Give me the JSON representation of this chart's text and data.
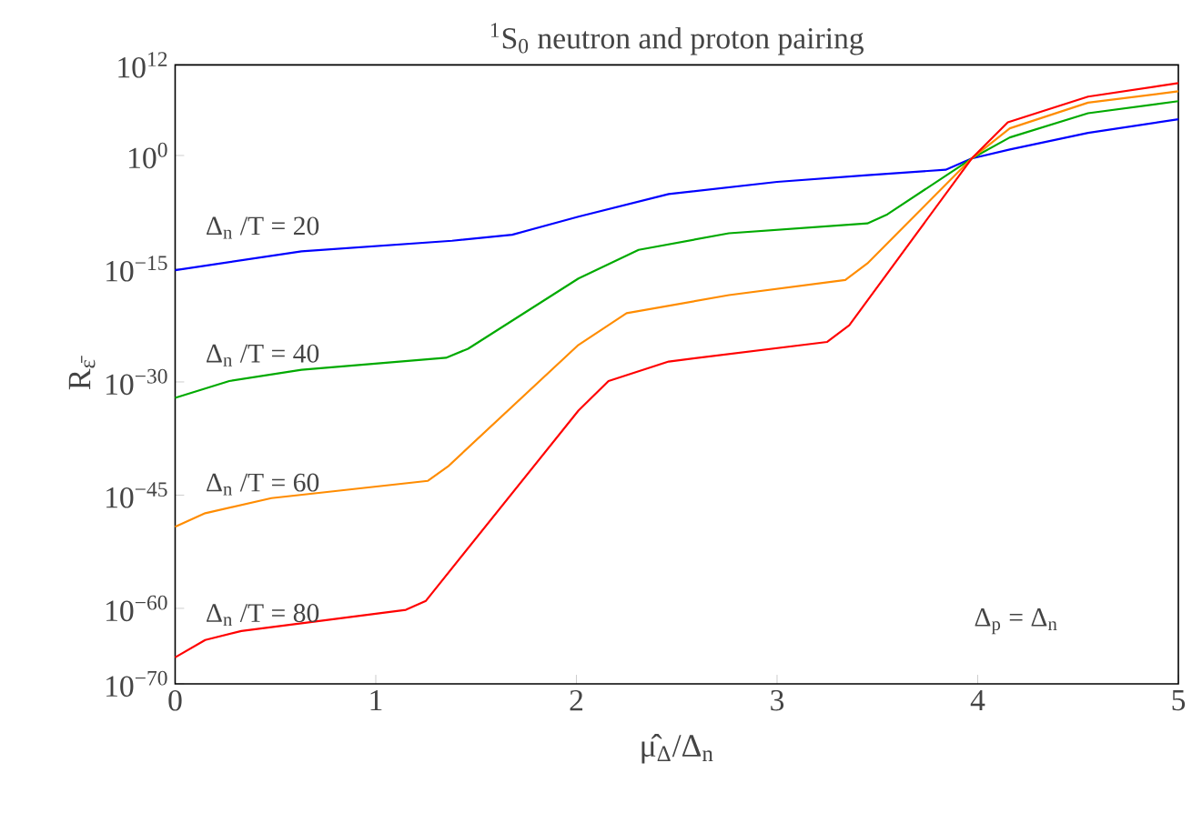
{
  "chart_data": {
    "type": "line",
    "title": "$^{1}$S$_{0}$ neutron and proton pairing",
    "xlabel": "μ̂$_{Δ}$/Δ$_{n}$",
    "ylabel": "R$_{ε̄}$",
    "log": "y",
    "xlim": [
      0,
      5
    ],
    "xticks": [
      0,
      1,
      2,
      3,
      4,
      5
    ],
    "ylim": [
      1e-70,
      1000000000000.0
    ],
    "yticks": [
      {
        "value": 1e-70,
        "label": "10$^{−70}$"
      },
      {
        "value": 1e-60,
        "label": "10$^{−60}$"
      },
      {
        "value": 1e-45,
        "label": "10$^{−45}$"
      },
      {
        "value": 1e-30,
        "label": "10$^{−30}$"
      },
      {
        "value": 1e-15,
        "label": "10$^{−15}$"
      },
      {
        "value": 1,
        "label": "10$^{0}$"
      },
      {
        "value": 1000000000000.0,
        "label": "10$^{12}$"
      }
    ],
    "annotations": [
      "Δ$_{p}$ = Δ$_{n}$"
    ],
    "series": [
      {
        "name": "Δ$_{n}$ /T = 20",
        "color": "#0000ff",
        "x": [
          0,
          0.63,
          1.38,
          1.68,
          2.01,
          2.46,
          3,
          3.45,
          3.84,
          3.97,
          4.16,
          4.55,
          5
        ],
        "values": [
          6.3e-16,
          2e-13,
          5e-12,
          3.2e-11,
          7.9e-09,
          7.9e-06,
          0.00032,
          0.0025,
          0.013,
          0.4,
          6.3,
          1000,
          63000.0
        ]
      },
      {
        "name": "Δ$_{n}$ /T = 40",
        "color": "#00aa00",
        "x": [
          0,
          0.27,
          0.63,
          1.35,
          1.46,
          2.01,
          2.31,
          2.76,
          3.45,
          3.55,
          3.97,
          4.16,
          4.55,
          5
        ],
        "values": [
          7.9e-33,
          1.3e-30,
          4e-29,
          1.6e-27,
          2.5e-26,
          5e-17,
          3.2e-13,
          5e-11,
          1e-09,
          1.6e-08,
          0.4,
          250,
          400000.0,
          16000000.0
        ]
      },
      {
        "name": "Δ$_{n}$ /T = 60",
        "color": "#ff8c00",
        "x": [
          0,
          0.15,
          0.48,
          1.26,
          1.36,
          2.01,
          2.25,
          2.76,
          3.34,
          3.45,
          3.97,
          4.16,
          4.55,
          5
        ],
        "values": [
          6.3e-50,
          4e-48,
          4e-46,
          7.9e-44,
          6.3e-42,
          7.9e-26,
          1.3e-21,
          3.2e-19,
          3.2e-17,
          5e-15,
          0.4,
          4000,
          10000000.0,
          320000000.0
        ]
      },
      {
        "name": "Δ$_{n}$ /T = 80",
        "color": "#ff0000",
        "x": [
          0,
          0.15,
          0.33,
          1.15,
          1.25,
          2.01,
          2.16,
          2.46,
          3.25,
          3.36,
          3.97,
          4.15,
          4.55,
          5
        ],
        "values": [
          3.2e-67,
          6.3e-65,
          1e-63,
          6.3e-61,
          1e-59,
          1.6e-34,
          1.3e-30,
          5e-28,
          2e-25,
          3.2e-23,
          0.4,
          25000.0,
          63000000.0,
          4000000000.0
        ]
      }
    ]
  }
}
